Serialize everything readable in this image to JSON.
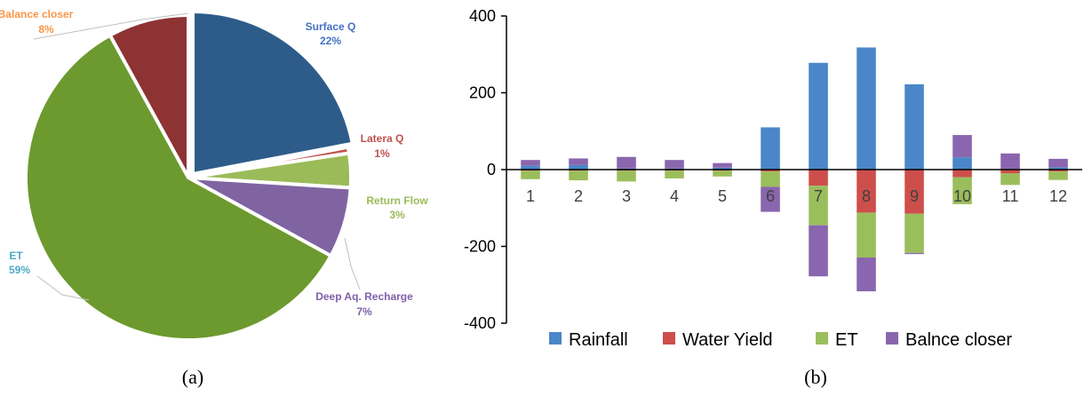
{
  "panels": {
    "left_label": "(a)",
    "right_label": "(b)"
  },
  "chart_data": [
    {
      "type": "pie",
      "slices": [
        {
          "name": "Surface Q",
          "label": "22%",
          "value": 22,
          "color": "#2E5C8A",
          "text_color": "#4472C4"
        },
        {
          "name": "Latera Q",
          "label": "1%",
          "value": 0.6,
          "color": "#C0504D",
          "text_color": "#C0504D"
        },
        {
          "name": "Return Flow",
          "label": "3%",
          "value": 3.4,
          "color": "#9BBB59",
          "text_color": "#9BBB59"
        },
        {
          "name": "Deep Aq. Recharge",
          "label": "7%",
          "value": 7,
          "color": "#8064A2",
          "text_color": "#7F5FA8"
        },
        {
          "name": "ET",
          "label": "59%",
          "value": 59,
          "color": "#6C9A2E",
          "text_color": "#4BACC6"
        },
        {
          "name": "Balance closer",
          "label": "8%",
          "value": 8,
          "color": "#8E3333",
          "text_color": "#F79646"
        }
      ]
    },
    {
      "type": "bar",
      "stacked": true,
      "categories": [
        "1",
        "2",
        "3",
        "4",
        "5",
        "6",
        "7",
        "8",
        "9",
        "10",
        "11",
        "12"
      ],
      "ylim": [
        -400,
        400
      ],
      "yticks": [
        -400,
        -200,
        0,
        200,
        400
      ],
      "legend_position": "bottom",
      "series": [
        {
          "name": "Rainfall",
          "color": "#4A86C8",
          "values": [
            10,
            12,
            3,
            3,
            5,
            110,
            278,
            318,
            222,
            32,
            2,
            6
          ]
        },
        {
          "name": "Water Yield",
          "color": "#CD4F4B",
          "values": [
            -3,
            -3,
            -3,
            -3,
            -3,
            -5,
            -42,
            -112,
            -115,
            -20,
            -10,
            -5
          ]
        },
        {
          "name": "ET",
          "color": "#9BBE5C",
          "values": [
            -22,
            -25,
            -28,
            -20,
            -15,
            -40,
            -103,
            -117,
            -102,
            -70,
            -30,
            -22
          ]
        },
        {
          "name": "Balnce closer",
          "color": "#8A66AE",
          "values": [
            15,
            17,
            30,
            22,
            12,
            -65,
            -133,
            -88,
            -3,
            58,
            40,
            22
          ]
        }
      ]
    }
  ]
}
